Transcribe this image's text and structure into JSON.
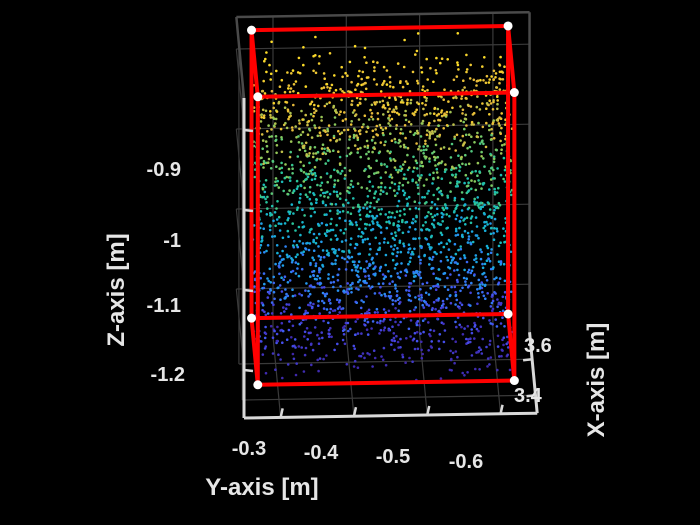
{
  "chart_data": {
    "type": "scatter3d",
    "title": "",
    "xlabel": "X-axis [m]",
    "ylabel": "Y-axis [m]",
    "zlabel": "Z-axis [m]",
    "x_ticks": [
      "3.4",
      "3.6"
    ],
    "y_ticks": [
      "-0.3",
      "-0.4",
      "-0.5",
      "-0.6"
    ],
    "z_ticks": [
      "-0.9",
      "-1",
      "-1.1",
      "-1.2"
    ],
    "xlim": [
      3.3,
      3.75
    ],
    "ylim": [
      -0.25,
      -0.65
    ],
    "zlim": [
      -1.26,
      -0.86
    ],
    "grid": true,
    "colormap": "parula (by Z)",
    "bounding_box_color": "#ff0000",
    "corner_marker_color": "#ffffff",
    "point_cloud": {
      "x_range": [
        3.35,
        3.72
      ],
      "y_range": [
        -0.27,
        -0.62
      ],
      "z_range": [
        -1.23,
        -0.88
      ],
      "approx_points": 2600
    },
    "bounding_box": {
      "x": [
        3.35,
        3.72
      ],
      "y": [
        -0.27,
        -0.62
      ],
      "z": [
        -1.23,
        -0.87
      ]
    }
  }
}
